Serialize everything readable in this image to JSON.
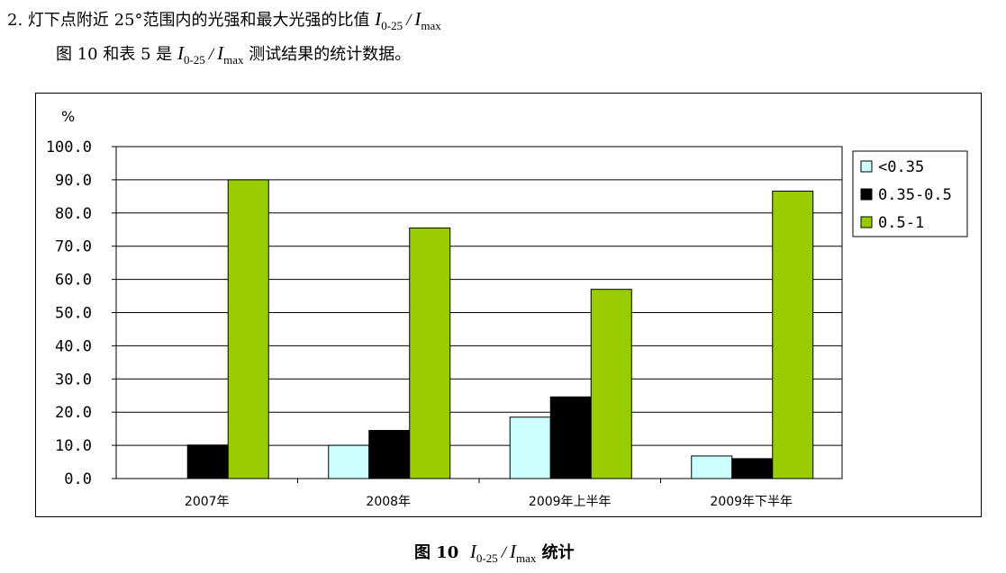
{
  "text": {
    "line1_prefix": "2.  灯下点附近 25°范围内的光强和最大光强的比值 ",
    "line2_prefix": "图 10 和表 5 是 ",
    "line2_suffix": " 测试结果的统计数据。",
    "ratio_I": "I",
    "ratio_sub1": "0-25",
    "ratio_slash": "/",
    "ratio_sub2": "max",
    "caption_prefix": "图 10",
    "caption_suffix": "统计"
  },
  "chart_data": {
    "type": "bar",
    "categories": [
      "2007年",
      "2008年",
      "2009年上半年",
      "2009年下半年"
    ],
    "series": [
      {
        "name": "<0.35",
        "color": "#ccffff",
        "values": [
          0,
          10,
          18.5,
          6.8
        ]
      },
      {
        "name": "0.35-0.5",
        "color": "#000000",
        "values": [
          10.1,
          14.5,
          24.6,
          6.0
        ]
      },
      {
        "name": "0.5-1",
        "color": "#99cc00",
        "values": [
          90,
          75.5,
          57,
          86.6
        ]
      }
    ],
    "ylabel": "%",
    "ylim": [
      0,
      100
    ],
    "yticks": [
      "0.0",
      "10.0",
      "20.0",
      "30.0",
      "40.0",
      "50.0",
      "60.0",
      "70.0",
      "80.0",
      "90.0",
      "100.0"
    ],
    "grid": true,
    "legend_position": "right"
  }
}
